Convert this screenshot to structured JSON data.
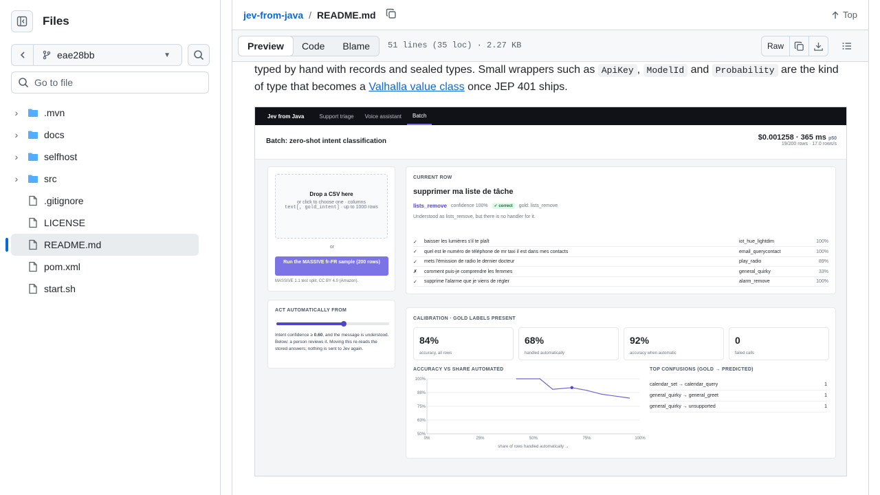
{
  "sidebar": {
    "title": "Files",
    "branch": "eae28bb",
    "goto_placeholder": "Go to file",
    "items": [
      {
        "name": ".mvn",
        "type": "folder"
      },
      {
        "name": "docs",
        "type": "folder"
      },
      {
        "name": "selfhost",
        "type": "folder"
      },
      {
        "name": "src",
        "type": "folder"
      },
      {
        "name": ".gitignore",
        "type": "file"
      },
      {
        "name": "LICENSE",
        "type": "file"
      },
      {
        "name": "README.md",
        "type": "file",
        "active": true
      },
      {
        "name": "pom.xml",
        "type": "file"
      },
      {
        "name": "start.sh",
        "type": "file"
      }
    ]
  },
  "breadcrumb": {
    "repo": "jev-from-java",
    "sep": "/",
    "file": "README.md",
    "top_label": "Top"
  },
  "toolbar": {
    "tabs": [
      "Preview",
      "Code",
      "Blame"
    ],
    "active_tab": "Preview",
    "file_info": "51 lines (35 loc) · 2.27 KB",
    "raw_label": "Raw"
  },
  "article": {
    "text1": "typed by hand with records and sealed types. Small wrappers such as ",
    "code1": "ApiKey",
    "text2": ", ",
    "code2": "ModelId",
    "text3": " and ",
    "code3": "Probability",
    "text4": " are the kind of type that becomes a ",
    "link": "Valhalla value class",
    "text5": " once JEP 401 ships."
  },
  "screenshot": {
    "nav": [
      "Jev from Java",
      "Support triage",
      "Voice assistant",
      "Batch"
    ],
    "nav_active": "Batch",
    "title": "Batch: zero-shot intent classification",
    "cost": "$0.001258",
    "latency": "365 ms",
    "latency_unit": "p50",
    "rows_info": "19/200 rows · 17.0 rows/s",
    "drop_title": "Drop a CSV here",
    "drop_sub": "or click to choose one · columns",
    "drop_cols": "text[, gold_intent]",
    "drop_limit": "· up to 1000 rows",
    "or": "or",
    "run_button": "Run the MASSIVE fr-FR sample (200 rows)",
    "dataset_note": "MASSIVE 1.1 test split, CC BY 4.0 (Amazon).",
    "current_row_label": "CURRENT ROW",
    "current_text": "supprimer ma liste de tâche",
    "current_intent": "lists_remove",
    "current_conf": "confidence 100%",
    "current_badge": "✓ correct",
    "current_gold": "gold: lists_remove",
    "current_note": "Understood as lists_remove, but there is no handler for it.",
    "rows": [
      {
        "mark": "✓",
        "text": "baisser les lumières s'il te plaît",
        "intent": "iot_hue_lightdim",
        "pct": "100%"
      },
      {
        "mark": "✓",
        "text": "quel est le numéro de téléphone de mr taxi il est dans mes contacts",
        "intent": "email_querycontact",
        "pct": "100%"
      },
      {
        "mark": "✓",
        "text": "mets l'émission de radio le dernier docteur",
        "intent": "play_radio",
        "pct": "89%"
      },
      {
        "mark": "✗",
        "text": "comment puis-je comprendre les femmes",
        "intent": "general_quirky",
        "pct": "33%"
      },
      {
        "mark": "✓",
        "text": "supprime l'alarme que je viens de régler",
        "intent": "alarm_remove",
        "pct": "100%"
      }
    ],
    "act_label": "ACT AUTOMATICALLY FROM",
    "threshold": 0.6,
    "act_note_1": "Intent confidence ≥ ",
    "act_value": "0.60",
    "act_note_2": ", and the message is understood. Below: a person reviews it. Moving this re-reads the stored answers; nothing is sent to Jev again.",
    "calib_label": "CALIBRATION · GOLD LABELS PRESENT",
    "stats": [
      {
        "value": "84%",
        "caption": "accuracy, all rows"
      },
      {
        "value": "68%",
        "caption": "handled automatically"
      },
      {
        "value": "92%",
        "caption": "accuracy when automatic"
      },
      {
        "value": "0",
        "caption": "failed calls"
      }
    ],
    "chart_title": "ACCURACY VS SHARE AUTOMATED",
    "chart_xlabel": "share of rows handled automatically →",
    "confusions_title": "TOP CONFUSIONS (GOLD → PREDICTED)",
    "confusions": [
      {
        "pair": "calendar_set → calendar_query",
        "count": "1"
      },
      {
        "pair": "general_quirky → general_greet",
        "count": "1"
      },
      {
        "pair": "general_quirky → unsupported",
        "count": "1"
      }
    ]
  },
  "chart_data": {
    "type": "line",
    "title": "ACCURACY VS SHARE AUTOMATED",
    "xlabel": "share of rows handled automatically →",
    "ylabel": "",
    "x_ticks": [
      "0%",
      "25%",
      "50%",
      "75%",
      "100%"
    ],
    "y_ticks": [
      "100%",
      "88%",
      "75%",
      "63%",
      "50%"
    ],
    "xlim": [
      0,
      100
    ],
    "ylim": [
      50,
      100
    ],
    "x": [
      42,
      53,
      59,
      68,
      75,
      82,
      95
    ],
    "y": [
      100,
      100,
      90.5,
      92,
      89.5,
      86,
      82.5
    ],
    "marker": {
      "x": 68,
      "y": 92
    },
    "color": "#6b63d6"
  }
}
